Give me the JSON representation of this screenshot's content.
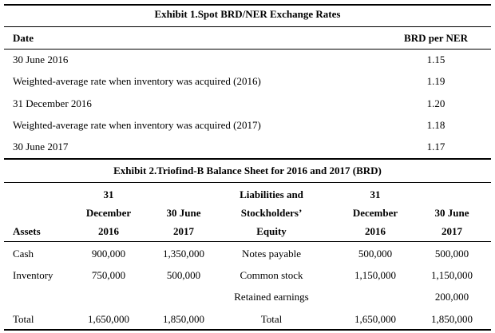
{
  "exhibit1": {
    "title": "Exhibit 1.Spot BRD/NER Exchange Rates",
    "header": {
      "date": "Date",
      "rate": "BRD per NER"
    },
    "rows": [
      {
        "date": "30 June 2016",
        "rate": "1.15"
      },
      {
        "date": "Weighted-average rate when inventory was acquired (2016)",
        "rate": "1.19"
      },
      {
        "date": "31 December 2016",
        "rate": "1.20"
      },
      {
        "date": "Weighted-average rate when inventory was acquired (2017)",
        "rate": "1.18"
      },
      {
        "date": "30 June 2017",
        "rate": "1.17"
      }
    ]
  },
  "exhibit2": {
    "title": "Exhibit 2.Triofind-B Balance Sheet for 2016 and 2017 (BRD)",
    "header": {
      "assets": "Assets",
      "dec2016_l1": "31",
      "dec2016_l2": "December",
      "dec2016_l3": "2016",
      "jun2017_l1": "30 June",
      "jun2017_l2": "2017",
      "liab_l1": "Liabilities and",
      "liab_l2": "Stockholders’",
      "liab_l3": "Equity",
      "dec2016b_l1": "31",
      "dec2016b_l2": "December",
      "dec2016b_l3": "2016",
      "jun2017b_l1": "30 June",
      "jun2017b_l2": "2017"
    },
    "rows": [
      {
        "asset": "Cash",
        "a2016": "900,000",
        "a2017": "1,350,000",
        "liab": "Notes payable",
        "l2016": "500,000",
        "l2017": "500,000"
      },
      {
        "asset": "Inventory",
        "a2016": "750,000",
        "a2017": "500,000",
        "liab": "Common stock",
        "l2016": "1,150,000",
        "l2017": "1,150,000"
      },
      {
        "asset": "",
        "a2016": "",
        "a2017": "",
        "liab": "Retained earnings",
        "l2016": "",
        "l2017": "200,000"
      },
      {
        "asset": "Total",
        "a2016": "1,650,000",
        "a2017": "1,850,000",
        "liab": "Total",
        "l2016": "1,650,000",
        "l2017": "1,850,000"
      }
    ]
  }
}
